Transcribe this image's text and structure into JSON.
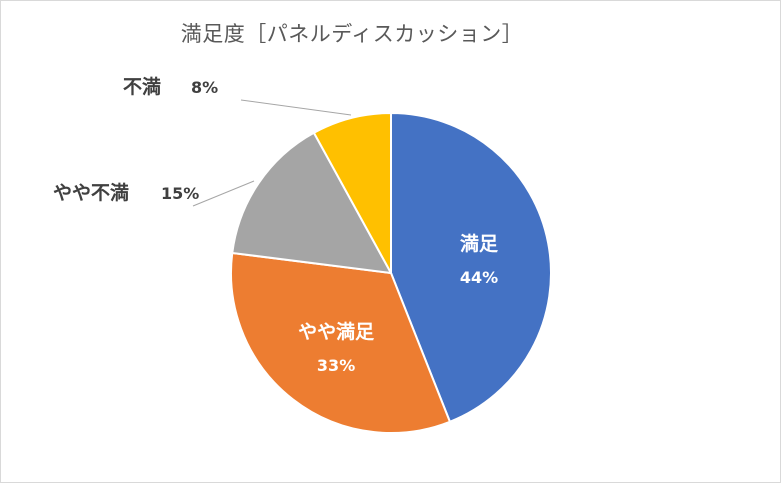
{
  "chart_data": {
    "type": "pie",
    "title": "満足度［パネルディスカッション］",
    "slices": [
      {
        "label": "満足",
        "value": 44,
        "value_label": "44%",
        "color": "#4472c4",
        "label_color": "#ffffff",
        "label_placement": "inside"
      },
      {
        "label": "やや満足",
        "value": 33,
        "value_label": "33%",
        "color": "#ed7d31",
        "label_color": "#ffffff",
        "label_placement": "inside"
      },
      {
        "label": "やや不満",
        "value": 15,
        "value_label": "15%",
        "color": "#a5a5a5",
        "label_color": "#404040",
        "label_placement": "outside"
      },
      {
        "label": "不満",
        "value": 8,
        "value_label": "8%",
        "color": "#ffc000",
        "label_color": "#404040",
        "label_placement": "outside"
      }
    ],
    "start_angle_deg": 0,
    "direction": "clockwise",
    "legend": "none",
    "slice_border_color": "#ffffff"
  }
}
